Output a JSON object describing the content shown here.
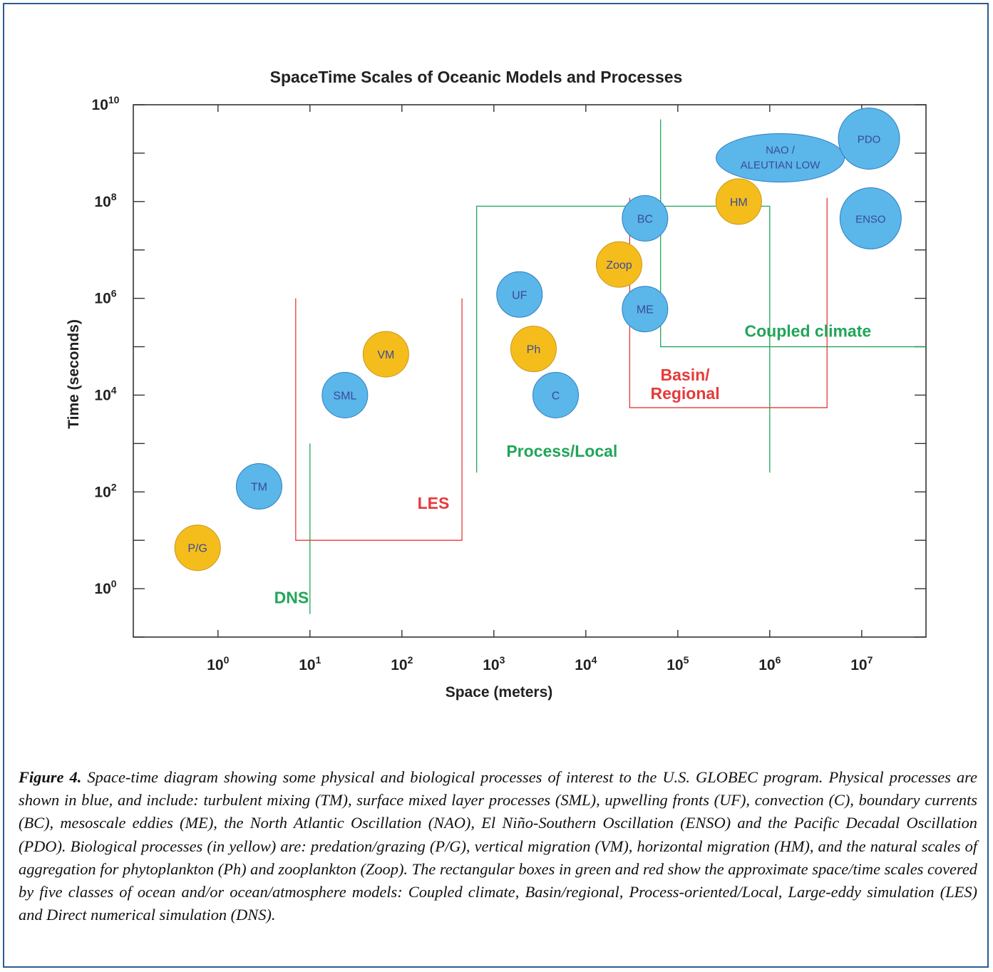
{
  "chart_data": {
    "type": "scatter",
    "title": "SpaceTime Scales of Oceanic Models and Processes",
    "xlabel": "Space (meters)",
    "ylabel": "Time (seconds)",
    "x_scale": "log",
    "y_scale": "log",
    "xlim": [
      0.12,
      50000000
    ],
    "ylim": [
      0.1,
      10000000000
    ],
    "x_tick_values": [
      1,
      10,
      100,
      1000,
      10000,
      100000,
      1000000,
      10000000
    ],
    "x_ticks": [
      {
        "base": "10",
        "exp": "0"
      },
      {
        "base": "10",
        "exp": "1"
      },
      {
        "base": "10",
        "exp": "2"
      },
      {
        "base": "10",
        "exp": "3"
      },
      {
        "base": "10",
        "exp": "4"
      },
      {
        "base": "10",
        "exp": "5"
      },
      {
        "base": "10",
        "exp": "6"
      },
      {
        "base": "10",
        "exp": "7"
      }
    ],
    "y_tick_values": [
      1,
      100,
      10000,
      1000000,
      100000000,
      10000000000
    ],
    "y_ticks": [
      {
        "base": "10",
        "exp": "0"
      },
      {
        "base": "10",
        "exp": "2"
      },
      {
        "base": "10",
        "exp": "4"
      },
      {
        "base": "10",
        "exp": "6"
      },
      {
        "base": "10",
        "exp": "8"
      },
      {
        "base": "10",
        "exp": "10"
      }
    ],
    "colors": {
      "physical": "#5bb6ea",
      "biological": "#f5bd1c",
      "marker_edge_physical": "#2f7fc0",
      "marker_edge_biological": "#c9961a",
      "marker_label": "#3a4a9a",
      "model_green": "#22a559",
      "model_red": "#e63a3a",
      "axis": "#333333"
    },
    "processes": [
      {
        "label": "P/G",
        "group": "biological",
        "x": 0.6,
        "y": 7
      },
      {
        "label": "TM",
        "group": "physical",
        "x": 2.8,
        "y": 130
      },
      {
        "label": "SML",
        "group": "physical",
        "x": 24,
        "y": 10000
      },
      {
        "label": "VM",
        "group": "biological",
        "x": 67,
        "y": 70000
      },
      {
        "label": "UF",
        "group": "physical",
        "x": 1900,
        "y": 1200000
      },
      {
        "label": "Ph",
        "group": "biological",
        "x": 2700,
        "y": 90000
      },
      {
        "label": "C",
        "group": "physical",
        "x": 4700,
        "y": 10000
      },
      {
        "label": "Zoop",
        "group": "biological",
        "x": 23000,
        "y": 5000000
      },
      {
        "label": "BC",
        "group": "physical",
        "x": 44000,
        "y": 45000000
      },
      {
        "label": "ME",
        "group": "physical",
        "x": 44000,
        "y": 600000
      },
      {
        "label": "HM",
        "group": "biological",
        "x": 460000,
        "y": 100000000
      },
      {
        "label": "NAO /",
        "label2": "ALEUTIAN LOW",
        "group": "physical",
        "shape": "ellipse",
        "x": 1300000,
        "y": 800000000
      },
      {
        "label": "PDO",
        "group": "physical",
        "x": 12000000,
        "y": 2000000000
      },
      {
        "label": "ENSO",
        "group": "physical",
        "x": 12500000,
        "y": 45000000
      }
    ],
    "model_classes": [
      {
        "label": "DNS",
        "color": "green",
        "x": [
          10,
          10
        ],
        "y": [
          0.3,
          1000
        ],
        "label_at": [
          6.3,
          0.5
        ]
      },
      {
        "label": "LES",
        "color": "red",
        "x": [
          7,
          450
        ],
        "y": [
          10,
          1000000
        ],
        "label_at": [
          220,
          45
        ]
      },
      {
        "label": "Process/Local",
        "color": "green",
        "x": [
          650,
          1000000
        ],
        "y": [
          250,
          80000000
        ],
        "label_at": [
          5500,
          530
        ]
      },
      {
        "label": "Basin/",
        "label2": "Regional",
        "color": "red",
        "x": [
          30000,
          4200000
        ],
        "y": [
          5500,
          120000000
        ],
        "label_at": [
          120000,
          20000
        ]
      },
      {
        "label": "Coupled climate",
        "color": "green",
        "x": [
          65000,
          50000000
        ],
        "y": [
          100000,
          5000000000
        ],
        "label_at": [
          2600000,
          160000
        ]
      }
    ]
  },
  "caption": {
    "lead": "Figure 4.",
    "text": "Space-time diagram showing some physical and biological processes of interest to the U.S. GLOBEC program. Physical processes are shown in blue, and include: turbulent mixing (TM), surface mixed layer processes (SML), upwelling fronts (UF), convection (C), boundary currents (BC), mesoscale eddies (ME), the North Atlantic Oscillation (NAO), El Niño-Southern Oscillation (ENSO) and the Pacific Decadal Oscillation (PDO). Biological processes (in yellow) are: predation/grazing (P/G), vertical migration (VM), horizontal migration (HM), and the natural scales of aggregation for phytoplankton (Ph) and zooplankton (Zoop). The rectangular boxes in green and red show the approximate space/time scales covered by five classes of ocean and/or ocean/atmosphere models: Coupled climate, Basin/regional, Process-oriented/Local, Large-eddy simulation (LES) and Direct numerical simulation (DNS)."
  }
}
